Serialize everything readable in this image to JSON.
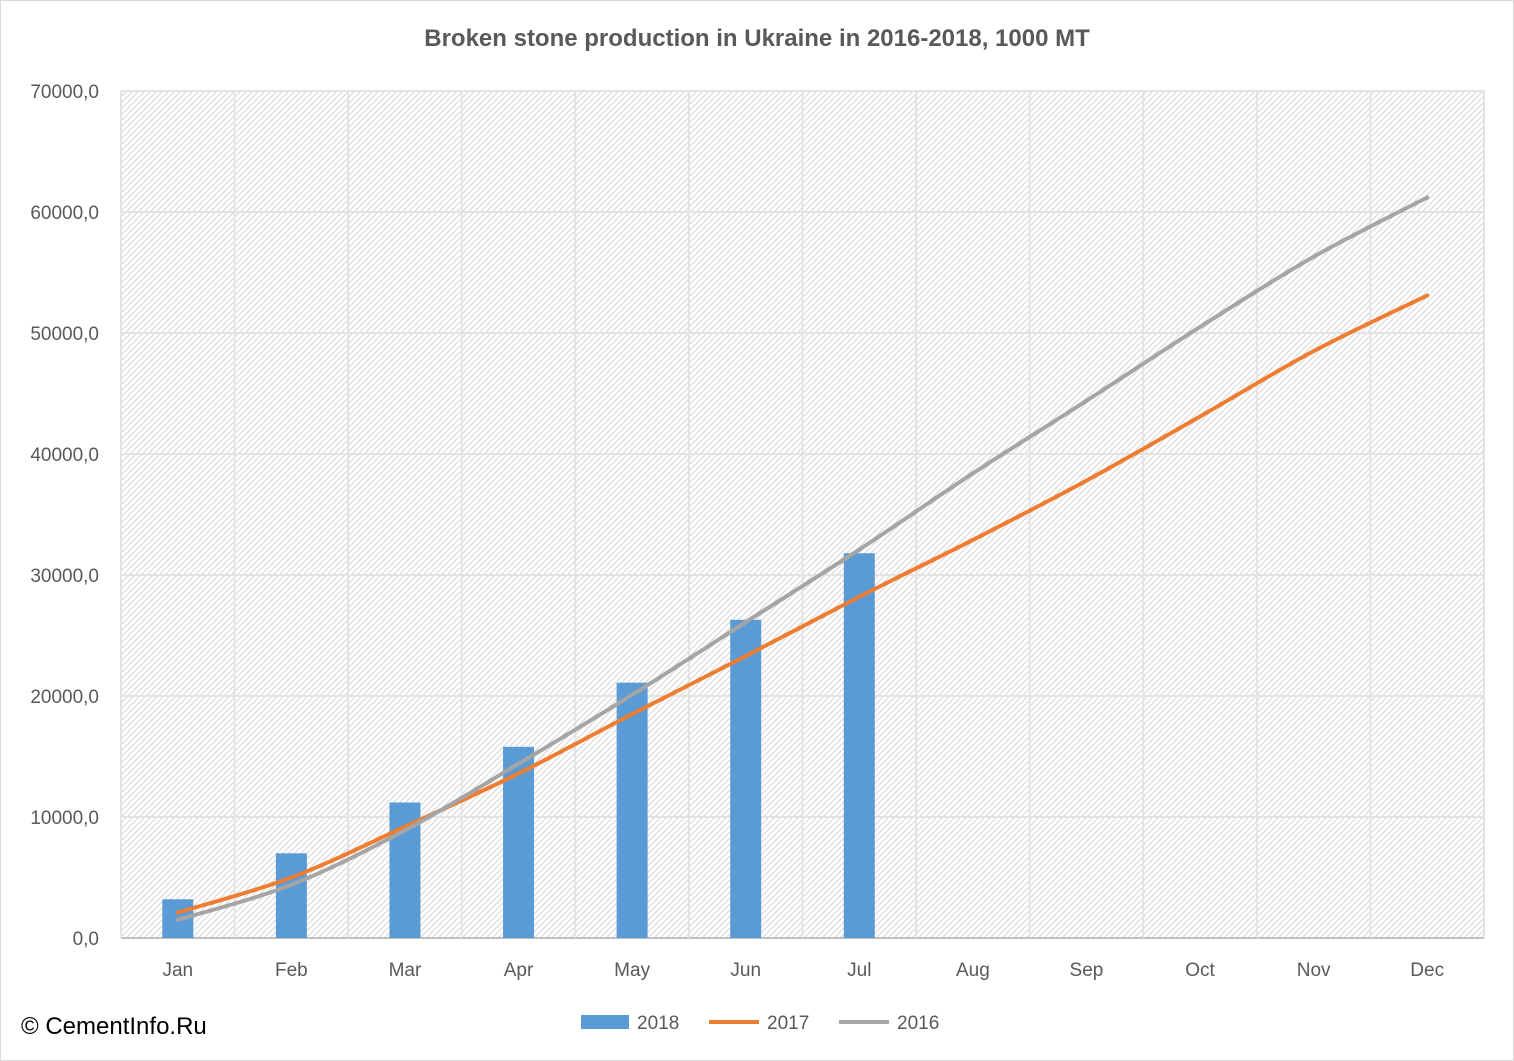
{
  "chart_data": {
    "type": "bar",
    "title": "Broken stone production in Ukraine in 2016-2018, 1000 MT",
    "xlabel": "",
    "ylabel": "",
    "categories": [
      "Jan",
      "Feb",
      "Mar",
      "Apr",
      "May",
      "Jun",
      "Jul",
      "Aug",
      "Sep",
      "Oct",
      "Nov",
      "Dec"
    ],
    "ylim": [
      0,
      70000
    ],
    "yticks": [
      0,
      10000,
      20000,
      30000,
      40000,
      50000,
      60000,
      70000
    ],
    "ytick_labels": [
      "0,0",
      "10000,0",
      "20000,0",
      "30000,0",
      "40000,0",
      "50000,0",
      "60000,0",
      "70000,0"
    ],
    "grid": true,
    "legend_position": "bottom",
    "series": [
      {
        "name": "2018",
        "kind": "bar",
        "color": "#5B9BD5",
        "values": [
          3200,
          7000,
          11200,
          15800,
          21100,
          26300,
          31800,
          null,
          null,
          null,
          null,
          null
        ]
      },
      {
        "name": "2017",
        "kind": "line",
        "color": "#ED7D31",
        "values": [
          2100,
          5000,
          9200,
          13600,
          18500,
          23300,
          28200,
          32900,
          37800,
          43100,
          48500,
          53100
        ]
      },
      {
        "name": "2016",
        "kind": "line",
        "color": "#A5A5A5",
        "values": [
          1500,
          4400,
          8900,
          14400,
          20100,
          26100,
          32100,
          38400,
          44400,
          50500,
          56300,
          61200
        ]
      }
    ]
  },
  "footer": {
    "copyright": "© CementInfo.Ru"
  }
}
